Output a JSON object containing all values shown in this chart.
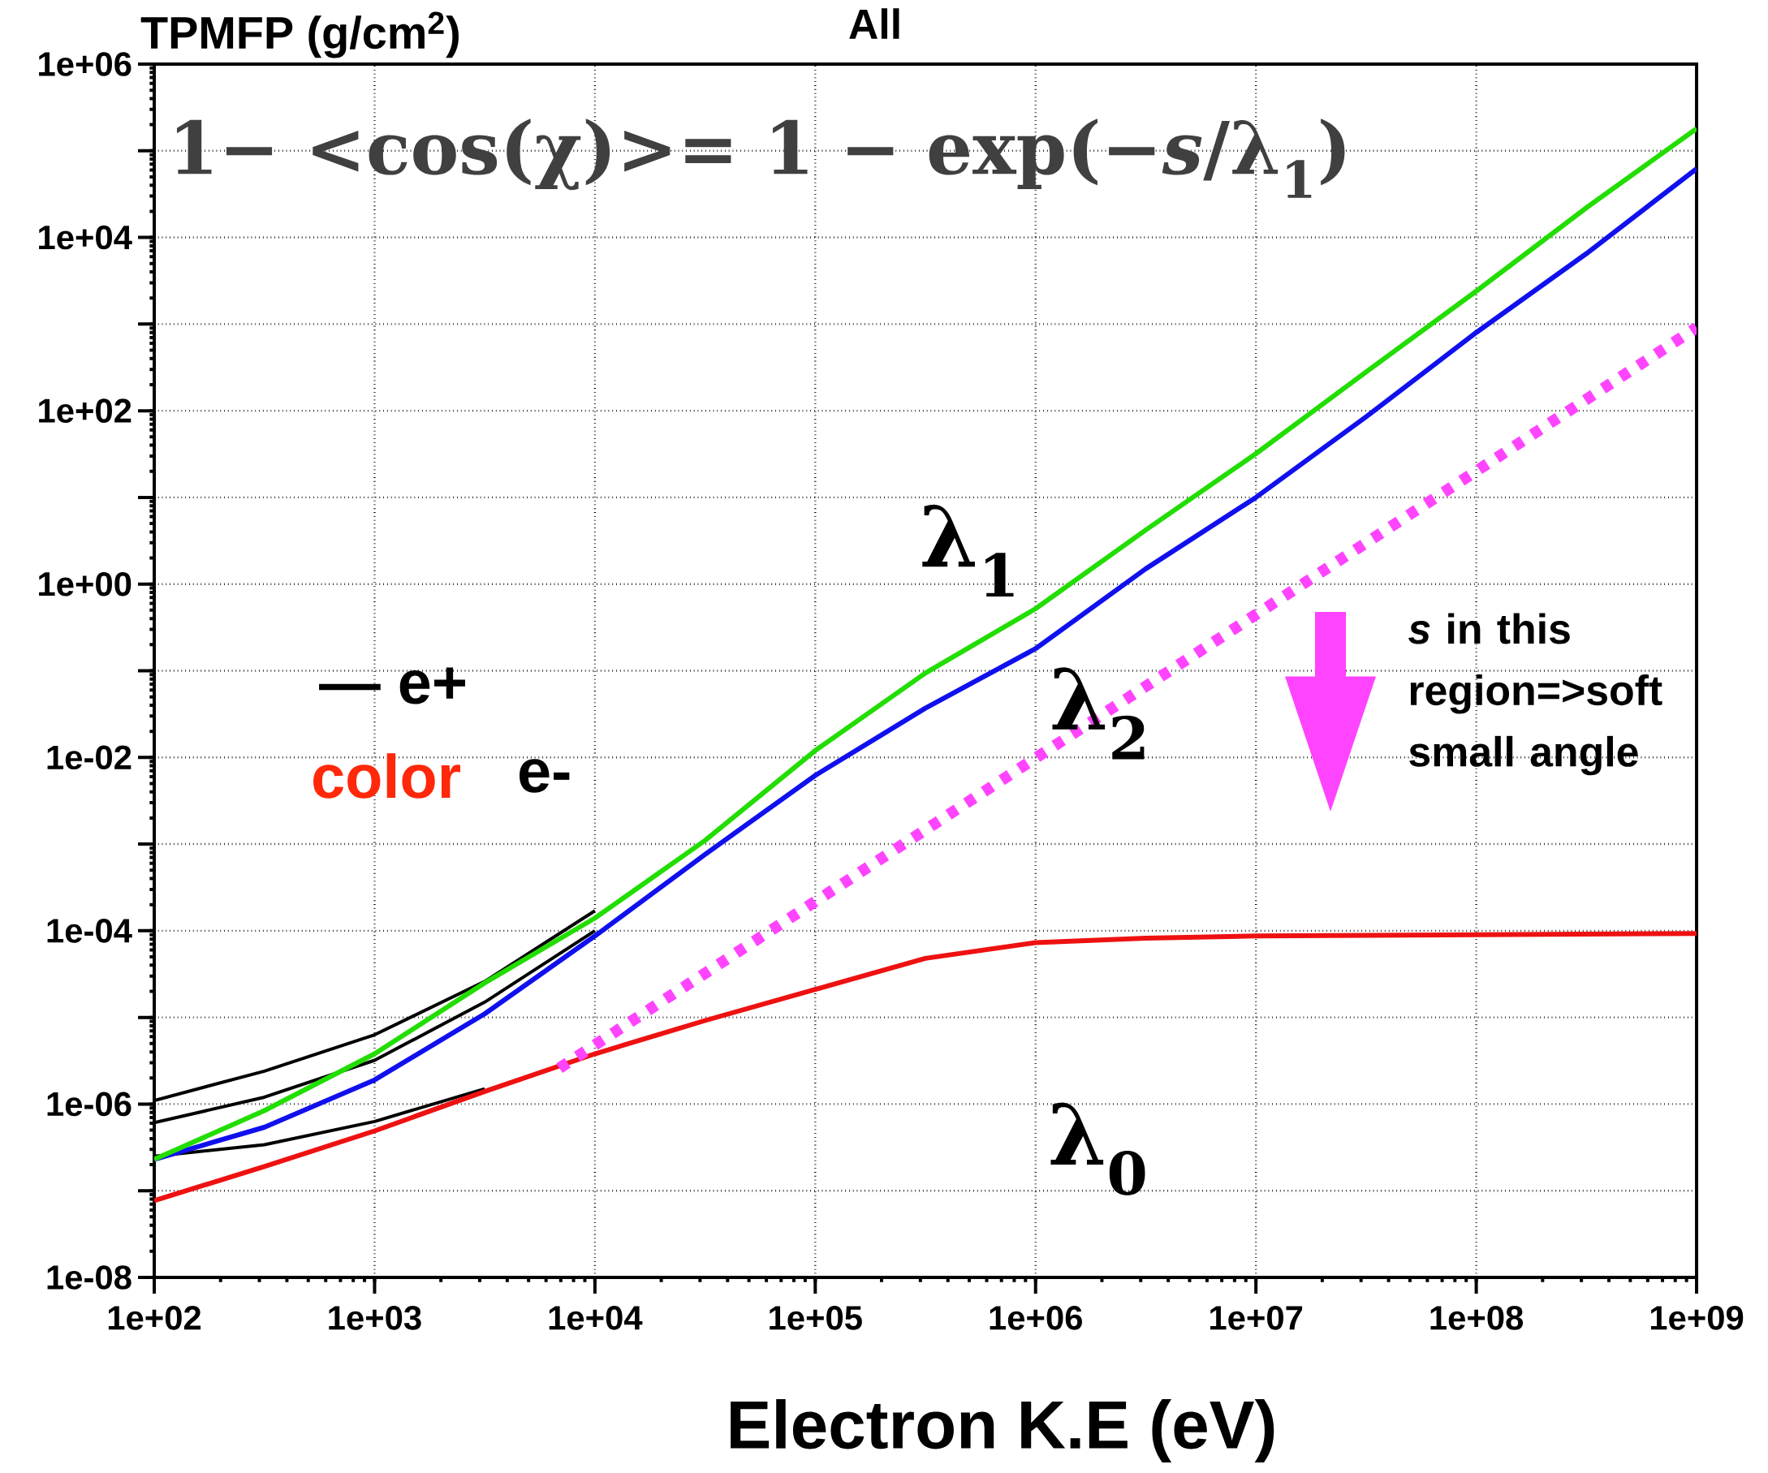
{
  "chart_data": {
    "type": "line",
    "title": "All",
    "xlabel": "Electron K.E (eV)",
    "ylabel": "TPMFP (g/cm$^{2}$)",
    "log": "xy",
    "grid": true,
    "xlim": [
      100,
      1000000000
    ],
    "ylim": [
      1e-08,
      1000000
    ],
    "xticks": [
      {
        "value": 100,
        "label": "1e+02"
      },
      {
        "value": 1000,
        "label": "1e+03"
      },
      {
        "value": 10000,
        "label": "1e+04"
      },
      {
        "value": 100000,
        "label": "1e+05"
      },
      {
        "value": 1000000,
        "label": "1e+06"
      },
      {
        "value": 10000000,
        "label": "1e+07"
      },
      {
        "value": 100000000,
        "label": "1e+08"
      },
      {
        "value": 1000000000,
        "label": "1e+09"
      }
    ],
    "yticks": [
      {
        "value": 1e-08,
        "label": "1e-08"
      },
      {
        "value": 1e-07,
        "label": null
      },
      {
        "value": 1e-06,
        "label": "1e-06"
      },
      {
        "value": 1e-05,
        "label": null
      },
      {
        "value": 0.0001,
        "label": "1e-04"
      },
      {
        "value": 0.001,
        "label": null
      },
      {
        "value": 0.01,
        "label": "1e-02"
      },
      {
        "value": 0.1,
        "label": null
      },
      {
        "value": 1,
        "label": "1e+00"
      },
      {
        "value": 10,
        "label": null
      },
      {
        "value": 100,
        "label": "1e+02"
      },
      {
        "value": 1000,
        "label": null
      },
      {
        "value": 10000,
        "label": "1e+04"
      },
      {
        "value": 100000,
        "label": null
      },
      {
        "value": 1000000,
        "label": "1e+06"
      }
    ],
    "series": [
      {
        "color": "#000000",
        "x": [
          100,
          316,
          1000,
          3160,
          10000
        ],
        "values": [
          1.1e-06,
          2.4e-06,
          6.3e-06,
          2.6e-05,
          0.00017
        ]
      },
      {
        "color": "#000000",
        "x": [
          100,
          316,
          1000,
          3160,
          10000
        ],
        "values": [
          6.1e-07,
          1.2e-06,
          3.2e-06,
          1.5e-05,
          0.0001
        ]
      },
      {
        "color": "#000000",
        "x": [
          100,
          316,
          1000,
          3160
        ],
        "values": [
          2.5e-07,
          3.4e-07,
          6.3e-07,
          1.5e-06
        ]
      },
      {
        "name": "λ$_{0}$",
        "color": "#ee1111",
        "x": [
          100,
          316,
          1000,
          3160,
          10000,
          31600,
          100000,
          316000,
          1000000,
          3160000,
          10000000,
          1000000000
        ],
        "values": [
          7.7e-08,
          1.9e-07,
          4.9e-07,
          1.4e-06,
          3.8e-06,
          9.2e-06,
          2.1e-05,
          4.8e-05,
          7.3e-05,
          8.2e-05,
          8.7e-05,
          9.3e-05
        ]
      },
      {
        "name": "λ$_{2}$",
        "color": "#1010ee",
        "x": [
          100,
          316,
          1000,
          3160,
          10000,
          31600,
          100000,
          316000,
          1000000,
          3160000,
          10000000,
          31600000,
          100000000,
          316000000,
          1000000000
        ],
        "values": [
          2.3e-07,
          5.4e-07,
          1.9e-06,
          1.1e-05,
          8.7e-05,
          0.00076,
          0.0062,
          0.037,
          0.18,
          1.5,
          10,
          85,
          800,
          6500,
          62000
        ]
      },
      {
        "name": "λ$_{1}$",
        "color": "#22dd00",
        "x": [
          100,
          316,
          1000,
          3160,
          10000,
          31600,
          100000,
          316000,
          1000000,
          3160000,
          10000000,
          31600000,
          100000000,
          316000000,
          1000000000
        ],
        "values": [
          2.3e-07,
          8.4e-07,
          3.8e-06,
          2.5e-05,
          0.00014,
          0.0011,
          0.012,
          0.094,
          0.52,
          4.2,
          32,
          280,
          2400,
          22000,
          180000
        ]
      },
      {
        "color": "#ff44ff",
        "line_style": "dotted",
        "x": [
          6900,
          1000000000
        ],
        "values": [
          2.6e-06,
          910
        ]
      }
    ],
    "annotations": [
      "1− <cos(χ)>= 1 − exp(−*s*/λ$_{1}$)",
      "— e+",
      "color",
      "e-",
      "*s* in this region=>soft small angle"
    ]
  }
}
